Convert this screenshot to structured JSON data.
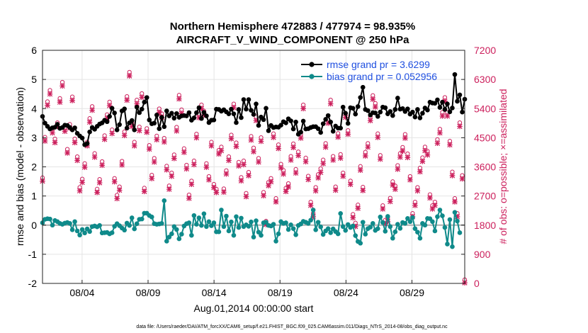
{
  "chart_data": {
    "type": "line",
    "title_line1": "Northern Hemisphere 472883 / 477974 = 98.935%",
    "title_line2": "AIRCRAFT_V_WIND_COMPONENT @ 250 hPa",
    "xlabel": "Aug.01,2014 00:00:00 start",
    "ylabel_left": "rmse and bias (model - observation)",
    "ylabel_right": "# of obs: o=possible; ×=assimilated",
    "ylim_left": [
      -2,
      6
    ],
    "ylim_right": [
      0,
      7200
    ],
    "xlim_days": [
      1,
      33
    ],
    "yticks_left": [
      "-2",
      "-1",
      "0",
      "1",
      "2",
      "3",
      "4",
      "5",
      "6"
    ],
    "yticks_right": [
      "0",
      "900",
      "1800",
      "2700",
      "3600",
      "4500",
      "5400",
      "6300",
      "7200"
    ],
    "xtick_labels": [
      "08/04",
      "08/09",
      "08/14",
      "08/19",
      "08/24",
      "08/29"
    ],
    "xtick_days": [
      4,
      9,
      14,
      19,
      24,
      29
    ],
    "legend_position": "top-right",
    "colors": {
      "rmse": "#000000",
      "bias": "#0f8a8a",
      "obs": "#cc1f5c",
      "zero_line": "#b0b0b0",
      "legend_text": "#1f4fe0"
    },
    "series": [
      {
        "name": "rmse grand pr = 3.6299",
        "axis": "left",
        "values": [
          3.73,
          3.5,
          3.39,
          3.3,
          3.34,
          3.36,
          3.46,
          3.32,
          3.35,
          3.43,
          3.42,
          3.35,
          3.27,
          3.34,
          3.15,
          3.06,
          2.99,
          2.76,
          2.8,
          3.2,
          3.35,
          3.29,
          3.39,
          3.47,
          3.51,
          3.6,
          3.55,
          3.73,
          4.01,
          3.85,
          3.27,
          3.45,
          3.92,
          3.99,
          3.33,
          3.51,
          3.59,
          3.27,
          4.05,
          3.86,
          3.98,
          4.22,
          4.38,
          3.61,
          3.48,
          3.5,
          3.78,
          3.31,
          3.7,
          3.38,
          3.92,
          3.75,
          3.84,
          3.67,
          3.83,
          3.7,
          3.75,
          3.76,
          3.75,
          3.86,
          3.6,
          3.68,
          3.86,
          4.03,
          3.66,
          3.87,
          3.75,
          3.52,
          3.6,
          3.61,
          3.98,
          3.97,
          3.91,
          3.96,
          3.89,
          3.82,
          3.98,
          3.82,
          3.52,
          3.97,
          3.69,
          4.31,
          3.98,
          4.31,
          3.94,
          3.8,
          4.16,
          3.42,
          3.71,
          3.62,
          4.01,
          3.24,
          3.42,
          3.35,
          3.37,
          3.36,
          3.43,
          3.55,
          3.51,
          3.65,
          3.58,
          3.3,
          3.54,
          3.12,
          3.19,
          3.57,
          3.3,
          3.31,
          3.35,
          3.38,
          3.38,
          3.31,
          3.18,
          3.48,
          3.63,
          3.76,
          3.54,
          3.22,
          3.4,
          3.33,
          3.33,
          4.05,
          3.84,
          3.49,
          4.03,
          4.01,
          3.81,
          4.07,
          4.38,
          4.73,
          3.97,
          3.93,
          3.78,
          3.86,
          3.85,
          3.73,
          3.88,
          4.05,
          4.03,
          3.82,
          3.9,
          3.76,
          3.97,
          4.36,
          3.98,
          4.0,
          3.9,
          3.99,
          3.81,
          3.88,
          3.71,
          3.97,
          3.68,
          3.84,
          4.02,
          3.95,
          4.22,
          4.19,
          4.18,
          4.3,
          4.04,
          4.22,
          3.97,
          4.16,
          3.89,
          4.02,
          5.17,
          4.25,
          4.47,
          3.88,
          4.32
        ]
      },
      {
        "name": "bias grand pr = 0.052956",
        "axis": "left",
        "values": [
          0.08,
          0.2,
          0.22,
          0.21,
          0.0,
          0.16,
          0.12,
          0.06,
          0.03,
          0.07,
          0.09,
          0.06,
          -0.16,
          0.12,
          -0.2,
          -0.34,
          -0.15,
          -0.27,
          -0.13,
          -0.22,
          -0.05,
          -0.03,
          -0.06,
          -0.01,
          -0.27,
          -0.26,
          -0.25,
          -0.3,
          -0.26,
          -0.04,
          0.05,
          -0.02,
          -0.1,
          -0.17,
          0.07,
          -0.01,
          0.25,
          -0.13,
          0.05,
          0.2,
          0.21,
          0.41,
          0.41,
          0.33,
          0.28,
          0.05,
          0.03,
          0.04,
          0.06,
          0.84,
          -0.55,
          -0.41,
          -0.3,
          -0.05,
          -0.15,
          -0.47,
          -0.31,
          -0.03,
          0.05,
          0.08,
          -0.35,
          0.33,
          0.03,
          0.25,
          -0.01,
          0.39,
          -0.05,
          0.12,
          -0.02,
          0.08,
          -0.23,
          -0.23,
          0.52,
          -0.05,
          0.31,
          -0.2,
          0.11,
          -0.35,
          0.29,
          -0.08,
          0.24,
          -0.05,
          0.01,
          -0.04,
          0.11,
          -0.41,
          0.15,
          -0.24,
          -0.35,
          0.08,
          0.1,
          -0.01,
          -0.03,
          0.03,
          -0.55,
          -0.3,
          0.12,
          0.06,
          0.08,
          -0.15,
          0.01,
          -0.12,
          -0.33,
          -0.01,
          0.04,
          0.13,
          0.1,
          0.06,
          0.17,
          0.52,
          -0.16,
          0.1,
          -0.06,
          -0.32,
          -0.2,
          -0.12,
          -0.26,
          -0.13,
          -0.22,
          -0.3,
          0.4,
          -0.05,
          -0.18,
          0.02,
          -0.08,
          -0.03,
          -0.36,
          -0.56,
          -0.62,
          0.1,
          -0.31,
          -0.12,
          -0.07,
          0.06,
          -0.18,
          -0.12,
          0.28,
          0.09,
          -0.21,
          0.3,
          -0.05,
          -0.45,
          -0.23,
          0.03,
          -0.11,
          0.09,
          0.06,
          0.23,
          0.12,
          0.26,
          -0.12,
          -0.24,
          -0.45,
          0.06,
          0.0,
          0.23,
          0.22,
          0.12,
          -0.2,
          0.29,
          0.52,
          0.32,
          -0.08,
          -0.65,
          0.19,
          -0.74,
          0.44,
          0.14,
          -0.26
        ]
      },
      {
        "name": "# of obs possible",
        "axis": "right",
        "values": [
          3200,
          4450,
          5550,
          5900,
          4700,
          4400,
          4900,
          5650,
          6150,
          4750,
          4080,
          4850,
          5700,
          4400,
          3850,
          2900,
          3160,
          3640,
          4300,
          5030,
          5400,
          3950,
          2850,
          3150,
          3700,
          4500,
          5150,
          5540,
          4680,
          3180,
          2660,
          2920,
          3710,
          4620,
          5710,
          6460,
          4900,
          4300,
          5600,
          4770,
          5800,
          2880,
          4720,
          4200,
          3280,
          3800,
          4490,
          5330,
          5180,
          4420,
          3560,
          2950,
          3350,
          3910,
          4760,
          5750,
          5300,
          4100,
          3590,
          2670,
          3100,
          3720,
          4550,
          5170,
          5450,
          5260,
          3640,
          3240,
          4300,
          3000,
          2850,
          4050,
          4150,
          2860,
          3420,
          3850,
          4520,
          5480,
          4280,
          3680,
          3210,
          3720,
          2720,
          3370,
          4480,
          4120,
          5080,
          3800,
          4440,
          2750,
          1860,
          3060,
          3180,
          4560,
          2560,
          4220,
          3620,
          3430,
          2880,
          3020,
          3860,
          4250,
          3460,
          4000,
          4540,
          5450,
          3810,
          3250,
          2450,
          2100,
          2900,
          3300,
          3480,
          3750,
          4260,
          5000,
          5600,
          3860,
          2920,
          4570,
          3920,
          3350,
          5180,
          4660,
          3100,
          2070,
          1800,
          2360,
          3550,
          2910,
          3990,
          4260,
          5080,
          5740,
          5500,
          4560,
          3890,
          2340,
          1890,
          1950,
          2570,
          3080,
          2950,
          3580,
          3950,
          4140,
          4540,
          3940,
          3240,
          2100,
          2450,
          2900,
          3500,
          3820,
          4150,
          4020,
          2680,
          2340,
          2450,
          4380,
          4700,
          5220,
          5680,
          5220,
          4330,
          3380,
          2560,
          2100,
          4900,
          3270,
          50
        ]
      },
      {
        "name": "# of obs assimilated",
        "axis": "right",
        "values": [
          3180,
          4420,
          5520,
          5870,
          4670,
          4370,
          4870,
          5620,
          6120,
          4720,
          4050,
          4820,
          5670,
          4370,
          3820,
          2880,
          3140,
          3610,
          4270,
          5000,
          5370,
          3920,
          2830,
          3130,
          3670,
          4470,
          5120,
          5510,
          4650,
          3160,
          2640,
          2900,
          3680,
          4590,
          5680,
          6430,
          4870,
          4270,
          5570,
          4740,
          5770,
          2860,
          4690,
          4170,
          3260,
          3770,
          4460,
          5300,
          5150,
          4390,
          3530,
          2930,
          3330,
          3880,
          4730,
          5720,
          5270,
          4070,
          3560,
          2650,
          3080,
          3690,
          4520,
          5140,
          5420,
          5230,
          3610,
          3220,
          4270,
          2980,
          2830,
          4020,
          4120,
          2840,
          3400,
          3820,
          4490,
          5450,
          4250,
          3650,
          3190,
          3690,
          2700,
          3350,
          4450,
          4090,
          5050,
          3770,
          4410,
          2730,
          1840,
          3040,
          3160,
          4530,
          2540,
          4190,
          3590,
          3400,
          2860,
          3000,
          3830,
          4220,
          3430,
          3970,
          4510,
          5420,
          3780,
          3230,
          2430,
          2080,
          2880,
          3280,
          3450,
          3720,
          4230,
          4970,
          5570,
          3830,
          2900,
          4540,
          3890,
          3330,
          5150,
          4630,
          3080,
          2050,
          1780,
          2340,
          3520,
          2890,
          3960,
          4230,
          5050,
          5710,
          5470,
          4530,
          3860,
          2320,
          1870,
          1930,
          2550,
          3060,
          2930,
          3550,
          3920,
          4110,
          4510,
          3910,
          3220,
          2080,
          2430,
          2880,
          3470,
          3790,
          4120,
          3990,
          2660,
          2320,
          2430,
          4350,
          4670,
          5190,
          5650,
          5190,
          4300,
          3350,
          2540,
          2080,
          4870,
          3250,
          40
        ]
      }
    ]
  },
  "footer": {
    "data_file": "data file: /Users/raeder/DAI/ATM_forcXX/CAM6_setup/f.e21.FHIST_BGC.f09_025.CAM6assim.011/Diags_NTrS_2014-08/obs_diag_output.nc"
  }
}
